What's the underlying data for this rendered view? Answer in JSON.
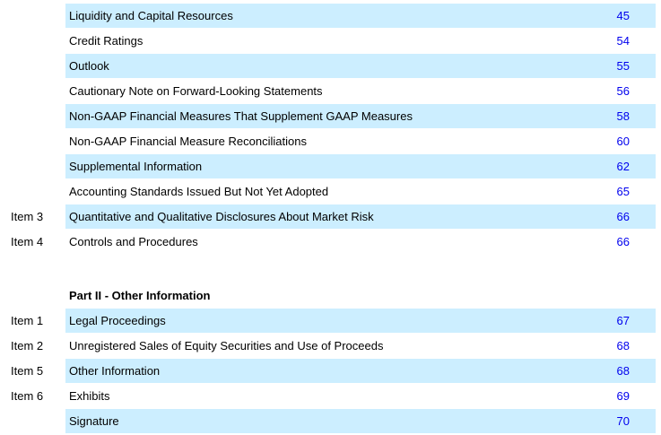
{
  "group1": [
    {
      "item": "",
      "label": "Liquidity and Capital Resources",
      "page": "45",
      "shaded": true
    },
    {
      "item": "",
      "label": "Credit Ratings",
      "page": "54",
      "shaded": false
    },
    {
      "item": "",
      "label": "Outlook",
      "page": "55",
      "shaded": true
    },
    {
      "item": "",
      "label": "Cautionary Note on Forward-Looking Statements",
      "page": "56",
      "shaded": false
    },
    {
      "item": "",
      "label": "Non-GAAP Financial Measures That Supplement GAAP Measures",
      "page": "58",
      "shaded": true
    },
    {
      "item": "",
      "label": "Non-GAAP Financial Measure Reconciliations",
      "page": "60",
      "shaded": false
    },
    {
      "item": "",
      "label": "Supplemental Information",
      "page": "62",
      "shaded": true
    },
    {
      "item": "",
      "label": "Accounting Standards Issued But Not Yet Adopted",
      "page": "65",
      "shaded": false
    },
    {
      "item": "Item 3",
      "label": "Quantitative and Qualitative Disclosures About Market Risk",
      "page": "66",
      "shaded": true
    },
    {
      "item": "Item 4",
      "label": "Controls and Procedures",
      "page": "66",
      "shaded": false
    }
  ],
  "part2_title": "Part II - Other Information",
  "group2": [
    {
      "item": "Item 1",
      "label": "Legal Proceedings",
      "page": "67",
      "shaded": true
    },
    {
      "item": "Item 2",
      "label": "Unregistered Sales of Equity Securities and Use of Proceeds",
      "page": "68",
      "shaded": false
    },
    {
      "item": "Item 5",
      "label": "Other Information",
      "page": "68",
      "shaded": true
    },
    {
      "item": "Item 6",
      "label": "Exhibits",
      "page": "69",
      "shaded": false
    },
    {
      "item": "",
      "label": "Signature",
      "page": "70",
      "shaded": true
    }
  ],
  "colors": {
    "band": "#cceeff",
    "page_link": "#0000ee"
  }
}
